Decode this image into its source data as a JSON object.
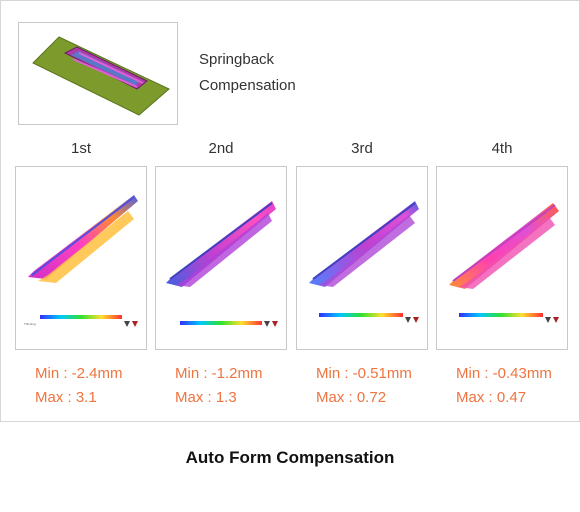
{
  "hero": {
    "caption_line1": "Springback",
    "caption_line2": "Compensation"
  },
  "iterations": [
    {
      "label": "1st",
      "min": "Min : -2.4mm",
      "max": "Max : 3.1"
    },
    {
      "label": "2nd",
      "min": "Min : -1.2mm",
      "max": "Max : 1.3"
    },
    {
      "label": "3rd",
      "min": "Min : -0.51mm",
      "max": "Max : 0.72"
    },
    {
      "label": "4th",
      "min": "Min : -0.43mm",
      "max": "Max : 0.47"
    }
  ],
  "footer": {
    "title": "Auto Form Compensation"
  },
  "colors": {
    "accent": "#ee7440",
    "border": "#c8c8c8",
    "plate": "#7a9a2a"
  }
}
